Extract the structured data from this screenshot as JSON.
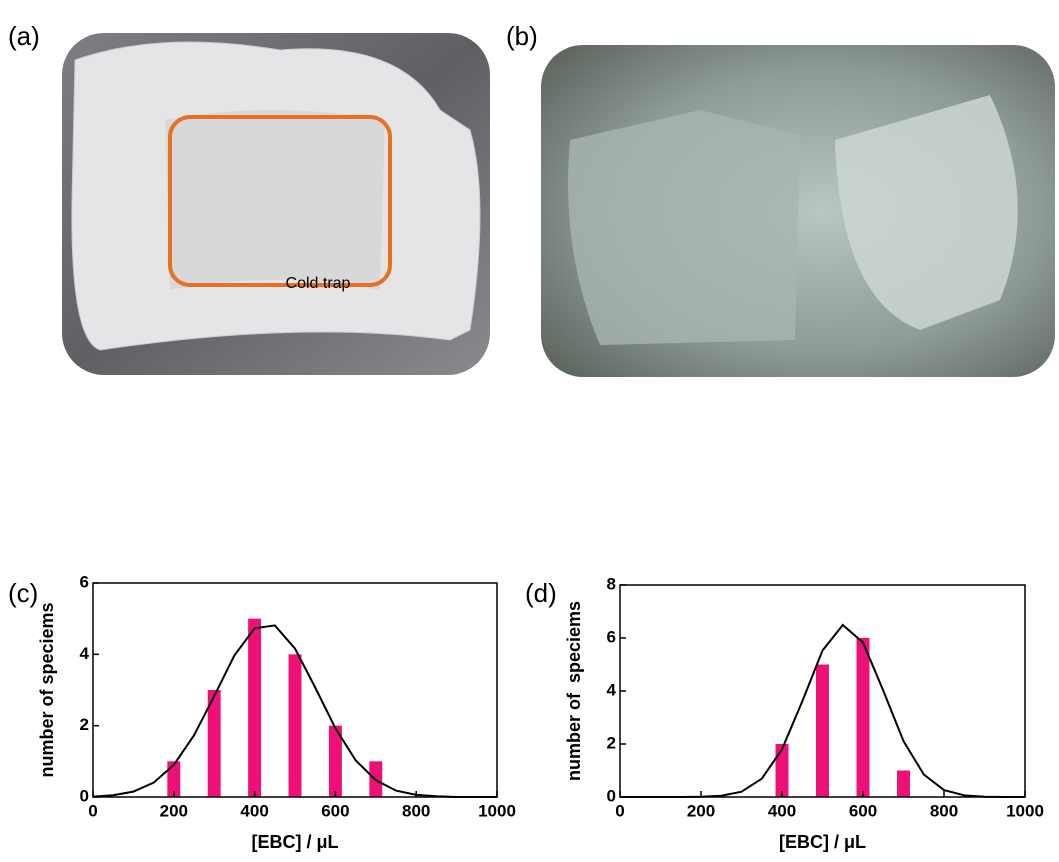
{
  "panels": {
    "a": {
      "label": "(a)",
      "annotation": "Cold trap"
    },
    "b": {
      "label": "(b)"
    }
  },
  "chart_data": [
    {
      "type": "bar",
      "label": "(c)",
      "x_label": "[EBC] / μL",
      "y_label": "number of speciems",
      "xlim": [
        0,
        1000
      ],
      "xticks": [
        0,
        200,
        400,
        600,
        800,
        1000
      ],
      "ylim": [
        0,
        6
      ],
      "yticks": [
        0,
        2,
        4,
        6
      ],
      "bars": {
        "color": "#ee1077",
        "x": [
          200,
          300,
          400,
          500,
          600,
          700
        ],
        "values": [
          1,
          3,
          5,
          4,
          2,
          1
        ]
      },
      "fit": {
        "color": "#000000",
        "x": [
          0,
          50,
          100,
          150,
          200,
          250,
          300,
          350,
          400,
          450,
          500,
          550,
          600,
          650,
          700,
          750,
          800,
          850,
          900,
          950,
          1000
        ],
        "values": [
          0.01,
          0.05,
          0.15,
          0.4,
          0.9,
          1.73,
          2.83,
          3.97,
          4.73,
          4.81,
          4.16,
          3.07,
          1.93,
          1.03,
          0.47,
          0.18,
          0.06,
          0.02,
          0.0,
          0.0,
          0.0
        ]
      }
    },
    {
      "type": "bar",
      "label": "(d)",
      "x_label": "[EBC] / μL",
      "y_label": "number of  speciems",
      "xlim": [
        0,
        1000
      ],
      "xticks": [
        0,
        200,
        400,
        600,
        800,
        1000
      ],
      "ylim": [
        0,
        8
      ],
      "yticks": [
        0,
        2,
        4,
        6,
        8
      ],
      "bars": {
        "color": "#ee1077",
        "x": [
          400,
          500,
          600,
          700
        ],
        "values": [
          2,
          5,
          6,
          1
        ]
      },
      "fit": {
        "color": "#000000",
        "x": [
          0,
          50,
          100,
          150,
          200,
          250,
          300,
          350,
          400,
          450,
          500,
          550,
          600,
          650,
          700,
          750,
          800,
          850,
          900,
          950,
          1000
        ],
        "values": [
          0.0,
          0.0,
          0.0,
          0.0,
          0.01,
          0.05,
          0.2,
          0.69,
          1.8,
          3.61,
          5.53,
          6.49,
          5.83,
          4.01,
          2.11,
          0.85,
          0.26,
          0.06,
          0.01,
          0.0,
          0.0
        ]
      }
    }
  ]
}
